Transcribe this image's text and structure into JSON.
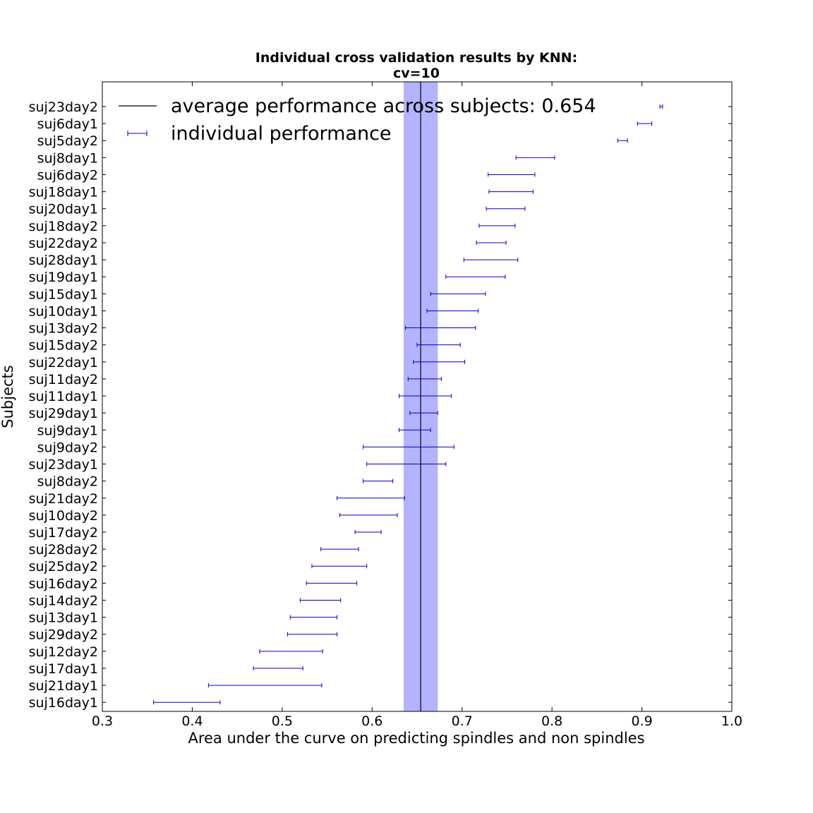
{
  "chart_data": {
    "type": "errorbar",
    "title_line1": "Individual cross validation results by KNN:",
    "title_line2": "cv=10",
    "xlabel": "Area under the curve on predicting spindles and non spindles",
    "ylabel": "Subjects",
    "xlim": [
      0.3,
      1.0
    ],
    "xticks": [
      "0.3",
      "0.4",
      "0.5",
      "0.6",
      "0.7",
      "0.8",
      "0.9",
      "1.0"
    ],
    "xtick_values": [
      0.3,
      0.4,
      0.5,
      0.6,
      0.7,
      0.8,
      0.9,
      1.0
    ],
    "legend": {
      "placement": "top-left",
      "average_label": "average performance across subjects: 0.654",
      "individual_label": "individual performance"
    },
    "average": {
      "value": 0.654,
      "band_low": 0.635,
      "band_high": 0.673,
      "line_color": "#000000",
      "band_color": "#8080ff"
    },
    "bar_color": "#0000cc",
    "subjects": [
      {
        "name": "suj23day2",
        "low": 0.92,
        "high": 0.923
      },
      {
        "name": "suj6day1",
        "low": 0.895,
        "high": 0.911
      },
      {
        "name": "suj5day2",
        "low": 0.873,
        "high": 0.884
      },
      {
        "name": "suj8day1",
        "low": 0.76,
        "high": 0.803
      },
      {
        "name": "suj6day2",
        "low": 0.729,
        "high": 0.781
      },
      {
        "name": "suj18day1",
        "low": 0.73,
        "high": 0.779
      },
      {
        "name": "suj20day1",
        "low": 0.727,
        "high": 0.77
      },
      {
        "name": "suj18day2",
        "low": 0.719,
        "high": 0.759
      },
      {
        "name": "suj22day2",
        "low": 0.716,
        "high": 0.749
      },
      {
        "name": "suj28day1",
        "low": 0.702,
        "high": 0.762
      },
      {
        "name": "suj19day1",
        "low": 0.682,
        "high": 0.748
      },
      {
        "name": "suj15day1",
        "low": 0.665,
        "high": 0.726
      },
      {
        "name": "suj10day1",
        "low": 0.661,
        "high": 0.718
      },
      {
        "name": "suj13day2",
        "low": 0.637,
        "high": 0.715
      },
      {
        "name": "suj15day2",
        "low": 0.65,
        "high": 0.698
      },
      {
        "name": "suj22day1",
        "low": 0.646,
        "high": 0.703
      },
      {
        "name": "suj11day2",
        "low": 0.64,
        "high": 0.677
      },
      {
        "name": "suj11day1",
        "low": 0.63,
        "high": 0.688
      },
      {
        "name": "suj29day1",
        "low": 0.642,
        "high": 0.673
      },
      {
        "name": "suj9day1",
        "low": 0.63,
        "high": 0.665
      },
      {
        "name": "suj9day2",
        "low": 0.59,
        "high": 0.691
      },
      {
        "name": "suj23day1",
        "low": 0.594,
        "high": 0.682
      },
      {
        "name": "suj8day2",
        "low": 0.59,
        "high": 0.623
      },
      {
        "name": "suj21day2",
        "low": 0.561,
        "high": 0.636
      },
      {
        "name": "suj10day2",
        "low": 0.564,
        "high": 0.628
      },
      {
        "name": "suj17day2",
        "low": 0.581,
        "high": 0.61
      },
      {
        "name": "suj28day2",
        "low": 0.543,
        "high": 0.585
      },
      {
        "name": "suj25day2",
        "low": 0.533,
        "high": 0.594
      },
      {
        "name": "suj16day2",
        "low": 0.527,
        "high": 0.583
      },
      {
        "name": "suj14day2",
        "low": 0.52,
        "high": 0.565
      },
      {
        "name": "suj13day1",
        "low": 0.509,
        "high": 0.561
      },
      {
        "name": "suj29day2",
        "low": 0.506,
        "high": 0.561
      },
      {
        "name": "suj12day2",
        "low": 0.475,
        "high": 0.545
      },
      {
        "name": "suj17day1",
        "low": 0.468,
        "high": 0.523
      },
      {
        "name": "suj21day1",
        "low": 0.418,
        "high": 0.544
      },
      {
        "name": "suj16day1",
        "low": 0.357,
        "high": 0.431
      }
    ]
  }
}
